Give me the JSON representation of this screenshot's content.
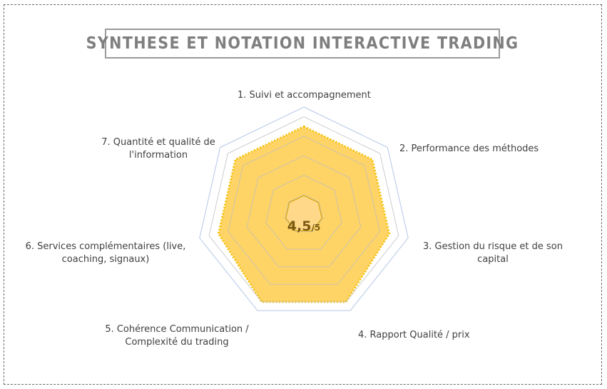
{
  "title": "SYNTHESE ET NOTATION INTERACTIVE TRADING",
  "score": {
    "value": "4,5",
    "suffix": "/5"
  },
  "chart_data": {
    "type": "radar",
    "title": "SYNTHESE ET NOTATION INTERACTIVE TRADING",
    "categories": [
      "1. Suivi et accompagnement",
      "2. Performance des méthodes",
      "3. Gestion du risque et de son capital",
      "4. Rapport Qualité / prix",
      "5. Cohérence Communication / Complexité du trading",
      "6. Services complémentaires (live, coaching, signaux)",
      "7. Quantité et qualité de l'information"
    ],
    "label_lines": [
      [
        "1. Suivi et accompagnement"
      ],
      [
        "2. Performance des méthodes"
      ],
      [
        "3. Gestion du risque et de son",
        "capital"
      ],
      [
        "4. Rapport Qualité / prix"
      ],
      [
        "5. Cohérence Communication /",
        "Complexité du trading"
      ],
      [
        "6. Services complémentaires (live,",
        "coaching, signaux)"
      ],
      [
        "7. Quantité et qualité de",
        "l'information"
      ]
    ],
    "series": [
      {
        "values": [
          4.5,
          4.5,
          4.5,
          5,
          5,
          4.5,
          4.5
        ]
      }
    ],
    "rmax": 5.5,
    "rings": [
      1,
      2,
      3,
      4,
      5
    ],
    "grid": true,
    "colors": {
      "fill": "#ffd466",
      "line": "#f4c20d",
      "grid": "#bfbfbf",
      "outer": "#b4c7e7",
      "center_fill": "#ffd88a",
      "center_stroke": "#e0a800"
    }
  }
}
